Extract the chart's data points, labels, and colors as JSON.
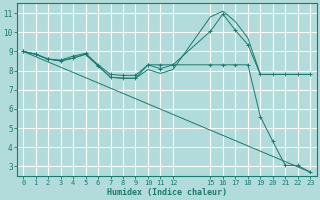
{
  "xlabel": "Humidex (Indice chaleur)",
  "background_color": "#b2dcdc",
  "grid_color": "#ffffff",
  "line_color": "#1a7a6e",
  "xlim": [
    -0.5,
    23.5
  ],
  "ylim": [
    2.5,
    11.5
  ],
  "xticks": [
    0,
    1,
    2,
    3,
    4,
    5,
    6,
    7,
    8,
    9,
    10,
    11,
    12,
    15,
    16,
    17,
    18,
    19,
    20,
    21,
    22,
    23
  ],
  "yticks": [
    3,
    4,
    5,
    6,
    7,
    8,
    9,
    10,
    11
  ],
  "series": [
    {
      "x": [
        0,
        1,
        2,
        3,
        4,
        5,
        6,
        7,
        8,
        9,
        10,
        11,
        12,
        15,
        16,
        17,
        18,
        19,
        20,
        21,
        22,
        23
      ],
      "y": [
        9.0,
        8.85,
        8.6,
        8.55,
        8.75,
        8.9,
        8.3,
        7.8,
        7.75,
        7.75,
        8.3,
        8.1,
        8.3,
        10.05,
        10.95,
        10.1,
        9.35,
        7.8,
        7.8,
        7.8,
        7.8,
        7.8
      ],
      "marker": "+"
    },
    {
      "x": [
        0,
        1,
        2,
        3,
        4,
        5,
        6,
        7,
        8,
        9,
        10,
        11,
        12,
        15,
        16,
        17,
        18,
        19,
        20,
        21,
        22,
        23
      ],
      "y": [
        9.0,
        8.85,
        8.6,
        8.5,
        8.65,
        8.85,
        8.25,
        7.65,
        7.6,
        7.6,
        8.05,
        7.85,
        8.05,
        10.8,
        11.1,
        10.55,
        9.7,
        7.8,
        7.8,
        7.8,
        7.8,
        7.8
      ],
      "marker": null
    },
    {
      "x": [
        0,
        23
      ],
      "y": [
        9.0,
        2.7
      ],
      "marker": null
    },
    {
      "x": [
        0,
        1,
        2,
        3,
        4,
        5,
        6,
        7,
        8,
        9,
        10,
        11,
        12,
        15,
        16,
        17,
        18,
        19,
        20,
        21,
        22,
        23
      ],
      "y": [
        9.0,
        8.85,
        8.6,
        8.5,
        8.65,
        8.85,
        8.25,
        7.65,
        7.6,
        7.6,
        8.3,
        8.3,
        8.3,
        8.3,
        8.3,
        8.3,
        8.3,
        5.6,
        4.3,
        3.05,
        3.05,
        2.7
      ],
      "marker": "+"
    }
  ]
}
